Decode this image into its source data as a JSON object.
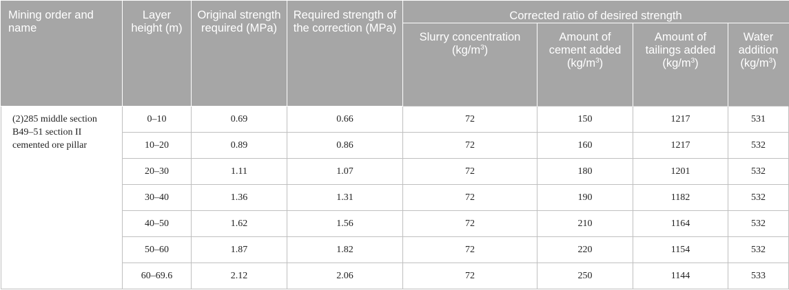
{
  "header": {
    "mining_order": "Mining order and name",
    "layer_height": "Layer height (m)",
    "original_strength": "Original strength required (MPa)",
    "required_strength": "Required strength of the correction (MPa)",
    "corrected_ratio": "Corrected ratio of desired strength",
    "slurry": "Slurry concentration (kg/m",
    "cement": "Amount of cement added (kg/m",
    "tailings": "Amount of tailings added (kg/m",
    "water": "Water addition (kg/m",
    "superscript": "3",
    "close": ")"
  },
  "mining_name": "(2)285 middle section B49–51 section II cemented ore pillar",
  "rows": [
    {
      "layer": "0–10",
      "original": "0.69",
      "required": "0.66",
      "slurry": "72",
      "cement": "150",
      "tailings": "1217",
      "water": "531"
    },
    {
      "layer": "10–20",
      "original": "0.89",
      "required": "0.86",
      "slurry": "72",
      "cement": "160",
      "tailings": "1217",
      "water": "532"
    },
    {
      "layer": "20–30",
      "original": "1.11",
      "required": "1.07",
      "slurry": "72",
      "cement": "180",
      "tailings": "1201",
      "water": "532"
    },
    {
      "layer": "30–40",
      "original": "1.36",
      "required": "1.31",
      "slurry": "72",
      "cement": "190",
      "tailings": "1182",
      "water": "532"
    },
    {
      "layer": "40–50",
      "original": "1.62",
      "required": "1.56",
      "slurry": "72",
      "cement": "210",
      "tailings": "1164",
      "water": "532"
    },
    {
      "layer": "50–60",
      "original": "1.87",
      "required": "1.82",
      "slurry": "72",
      "cement": "220",
      "tailings": "1154",
      "water": "532"
    },
    {
      "layer": "60–69.6",
      "original": "2.12",
      "required": "2.06",
      "slurry": "72",
      "cement": "250",
      "tailings": "1144",
      "water": "533"
    }
  ]
}
